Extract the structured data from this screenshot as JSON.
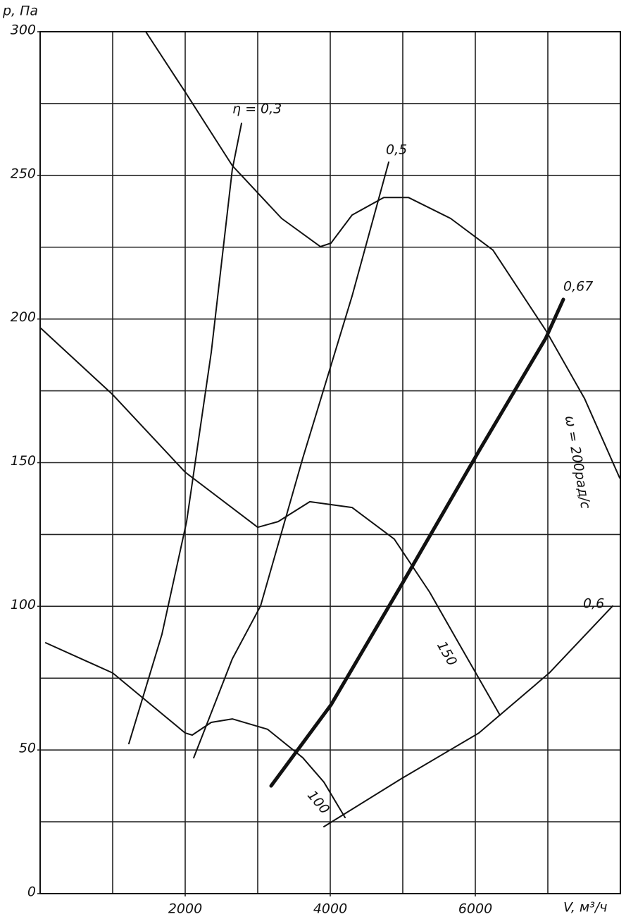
{
  "chart_data": {
    "type": "line",
    "y_label": "p, Па",
    "x_label": "V, м³/ч",
    "xlim": [
      0,
      8000
    ],
    "ylim": [
      0,
      300
    ],
    "xticks": [
      2000,
      4000,
      6000
    ],
    "yticks": [
      0,
      50,
      100,
      150,
      200,
      250,
      300
    ],
    "xgrid": [
      1000,
      2000,
      3000,
      4000,
      5000,
      6000,
      7000
    ],
    "ygrid": [
      25,
      50,
      75,
      100,
      125,
      150,
      175,
      200,
      225,
      250,
      275
    ],
    "series": [
      {
        "name": "ω = 200рад/с",
        "color": "#111",
        "line_width": 2,
        "x": [
          1456,
          2000,
          2650,
          3330,
          3864,
          4010,
          4301,
          4738,
          5078,
          5660,
          6243,
          6981,
          7505,
          7990
        ],
        "values": [
          300,
          279,
          253.4,
          235,
          225.2,
          226.4,
          236.2,
          242.3,
          242.3,
          235,
          224,
          195.7,
          172.4,
          144.7
        ]
      },
      {
        "name": "150",
        "color": "#111",
        "line_width": 2,
        "x": [
          0,
          1000,
          2000,
          3000,
          3282,
          3718,
          4301,
          4883,
          5369,
          5757,
          6340
        ],
        "values": [
          197,
          173.7,
          146.7,
          127.5,
          129.5,
          136.4,
          134.4,
          123.4,
          105,
          87.8,
          62.1
        ]
      },
      {
        "name": "100",
        "color": "#111",
        "line_width": 2,
        "x": [
          78,
          1000,
          2000,
          2097,
          2359,
          2650,
          3136,
          3621,
          3913,
          4204
        ],
        "values": [
          87.3,
          76.8,
          55.9,
          55.2,
          59.6,
          60.8,
          57.2,
          47.3,
          38.8,
          26.5
        ]
      },
      {
        "name": "η = 0,3",
        "color": "#111",
        "line_width": 2,
        "x": [
          1223,
          1680,
          2019,
          2359,
          2650,
          2777
        ],
        "values": [
          52.2,
          90.3,
          129.5,
          188.4,
          252.1,
          268.1
        ]
      },
      {
        "name": "0,5",
        "color": "#111",
        "line_width": 2,
        "x": [
          2117,
          2650,
          3039,
          3621,
          4301,
          4806
        ],
        "values": [
          47.3,
          81.7,
          100.1,
          151.6,
          208,
          254.6
        ]
      },
      {
        "name": "0,67",
        "color": "#111",
        "line_width": 5,
        "x": [
          3184,
          4010,
          4981,
          6049,
          6971,
          7214
        ],
        "values": [
          37.5,
          65.7,
          107.4,
          154,
          193.3,
          206.8
        ]
      },
      {
        "name": "0,6",
        "color": "#111",
        "line_width": 2,
        "x": [
          3913,
          4981,
          6049,
          7019,
          7893
        ],
        "values": [
          23.3,
          40,
          55.9,
          76.8,
          100.1
        ]
      }
    ]
  }
}
